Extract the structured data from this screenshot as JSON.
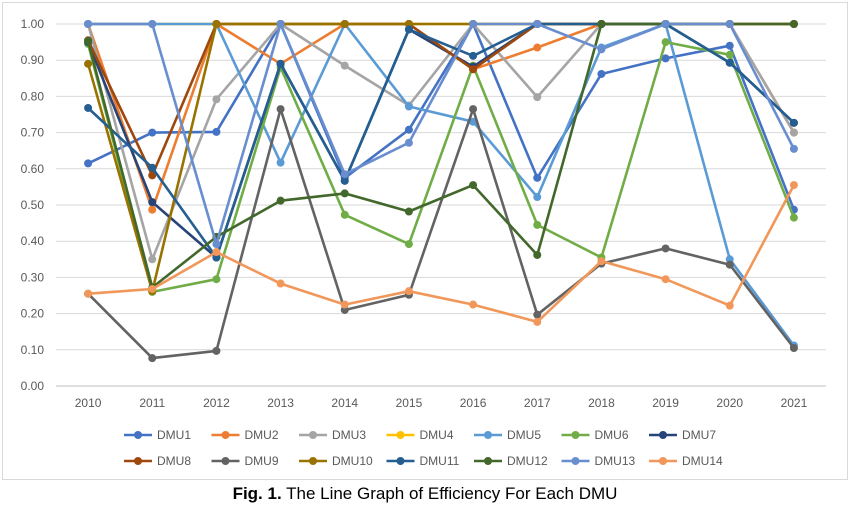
{
  "caption": {
    "prefix": "Fig. 1.",
    "text": " The Line Graph of Efficiency For Each DMU"
  },
  "chart_data": {
    "type": "line",
    "title": "",
    "xlabel": "",
    "ylabel": "",
    "x": [
      2010,
      2011,
      2012,
      2013,
      2014,
      2015,
      2016,
      2017,
      2018,
      2019,
      2020,
      2021
    ],
    "ylim": [
      0,
      1
    ],
    "yticks": [
      "0.00",
      "0.10",
      "0.20",
      "0.30",
      "0.40",
      "0.50",
      "0.60",
      "0.70",
      "0.80",
      "0.90",
      "1.00"
    ],
    "grid": "horizontal",
    "legend_position": "bottom",
    "series": [
      {
        "name": "DMU1",
        "color": "#4472C4",
        "values": [
          0.615,
          0.7,
          0.702,
          1.0,
          0.575,
          0.708,
          1.0,
          0.575,
          0.862,
          0.905,
          0.94,
          0.487
        ]
      },
      {
        "name": "DMU2",
        "color": "#ED7D31",
        "values": [
          1.0,
          0.487,
          1.0,
          0.89,
          1.0,
          1.0,
          0.875,
          0.935,
          1.0,
          1.0,
          1.0,
          0.7
        ]
      },
      {
        "name": "DMU3",
        "color": "#A5A5A5",
        "values": [
          1.0,
          0.35,
          0.792,
          1.0,
          0.885,
          0.775,
          1.0,
          0.798,
          1.0,
          1.0,
          1.0,
          0.7
        ]
      },
      {
        "name": "DMU4",
        "color": "#FFC000",
        "values": [
          1.0,
          1.0,
          1.0,
          1.0,
          1.0,
          1.0,
          1.0,
          1.0,
          1.0,
          1.0,
          1.0,
          1.0
        ]
      },
      {
        "name": "DMU5",
        "color": "#5B9BD5",
        "values": [
          1.0,
          1.0,
          1.0,
          0.617,
          1.0,
          0.772,
          0.73,
          0.522,
          0.935,
          1.0,
          0.35,
          0.112
        ]
      },
      {
        "name": "DMU6",
        "color": "#70AD47",
        "values": [
          0.945,
          0.26,
          0.295,
          0.88,
          0.473,
          0.392,
          0.885,
          0.445,
          0.355,
          0.95,
          0.915,
          0.465
        ]
      },
      {
        "name": "DMU7",
        "color": "#264478",
        "values": [
          0.95,
          0.508,
          0.355,
          0.89,
          0.567,
          0.985,
          0.882,
          1.0,
          1.0,
          1.0,
          0.893,
          0.727
        ]
      },
      {
        "name": "DMU8",
        "color": "#9E480E",
        "values": [
          0.955,
          0.582,
          1.0,
          1.0,
          1.0,
          1.0,
          0.875,
          1.0,
          1.0,
          1.0,
          1.0,
          1.0
        ]
      },
      {
        "name": "DMU9",
        "color": "#636363",
        "values": [
          0.255,
          0.077,
          0.097,
          0.765,
          0.21,
          0.252,
          0.765,
          0.197,
          0.338,
          0.38,
          0.335,
          0.105
        ]
      },
      {
        "name": "DMU10",
        "color": "#997300",
        "values": [
          0.89,
          0.262,
          1.0,
          1.0,
          1.0,
          1.0,
          1.0,
          1.0,
          1.0,
          1.0,
          1.0,
          1.0
        ]
      },
      {
        "name": "DMU11",
        "color": "#255E91",
        "values": [
          0.768,
          0.603,
          0.355,
          0.89,
          0.567,
          0.985,
          0.912,
          1.0,
          1.0,
          1.0,
          0.893,
          0.727
        ]
      },
      {
        "name": "DMU12",
        "color": "#43682B",
        "values": [
          0.953,
          0.272,
          0.412,
          0.512,
          0.532,
          0.482,
          0.555,
          0.362,
          1.0,
          1.0,
          1.0,
          1.0
        ]
      },
      {
        "name": "DMU13",
        "color": "#698ED0",
        "values": [
          1.0,
          1.0,
          0.392,
          1.0,
          0.585,
          0.672,
          1.0,
          1.0,
          0.93,
          1.0,
          1.0,
          0.655
        ]
      },
      {
        "name": "DMU14",
        "color": "#F1975A",
        "values": [
          0.255,
          0.268,
          0.37,
          0.283,
          0.225,
          0.262,
          0.225,
          0.177,
          0.345,
          0.295,
          0.222,
          0.555
        ]
      }
    ]
  }
}
